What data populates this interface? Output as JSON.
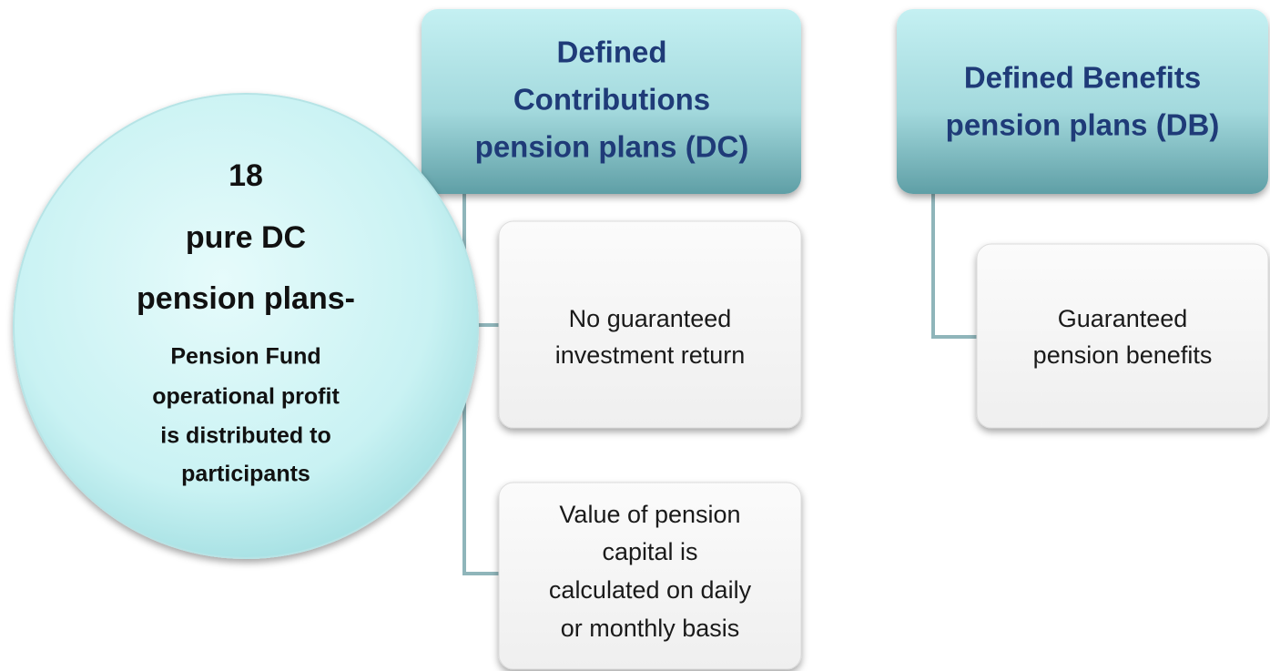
{
  "circle": {
    "lines": [
      "18",
      "pure DC",
      "pension plans-"
    ],
    "note": [
      "Pension Fund",
      "operational profit",
      "is distributed to",
      "participants"
    ]
  },
  "dc": {
    "title": [
      "Defined",
      "Contributions",
      "pension plans (DC)"
    ],
    "items": [
      [
        "No guaranteed",
        "investment return"
      ],
      [
        "Value of pension",
        "capital is",
        "calculated on daily",
        "or monthly basis"
      ]
    ]
  },
  "db": {
    "title": [
      "Defined Benefits",
      "pension plans (DB)"
    ],
    "items": [
      [
        "Guaranteed",
        "pension benefits"
      ]
    ]
  }
}
